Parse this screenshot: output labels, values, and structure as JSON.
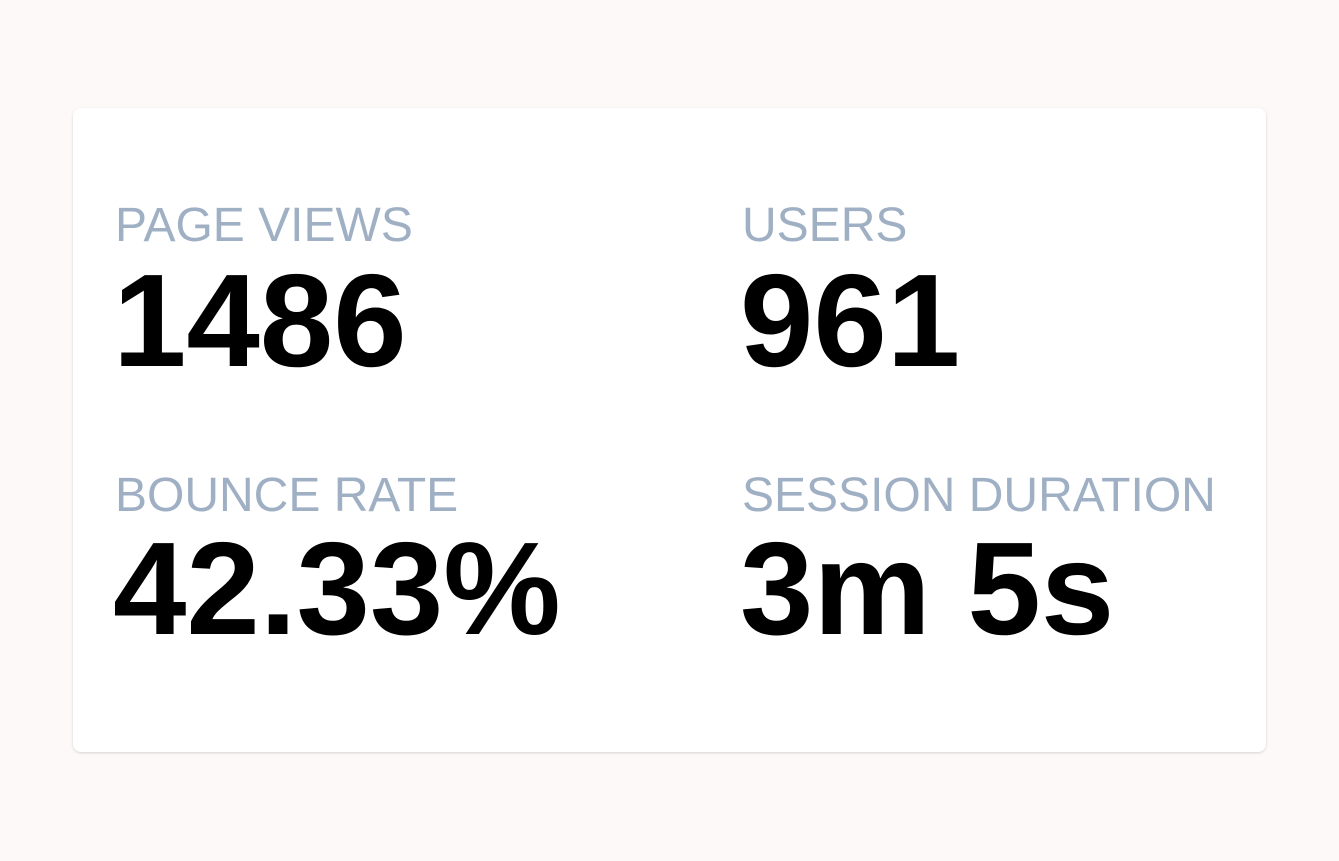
{
  "stats": [
    {
      "label": "PAGE VIEWS",
      "value": "1486"
    },
    {
      "label": "USERS",
      "value": "961"
    },
    {
      "label": "BOUNCE RATE",
      "value": "42.33%"
    },
    {
      "label": "SESSION DURATION",
      "value": "3m 5s"
    }
  ]
}
